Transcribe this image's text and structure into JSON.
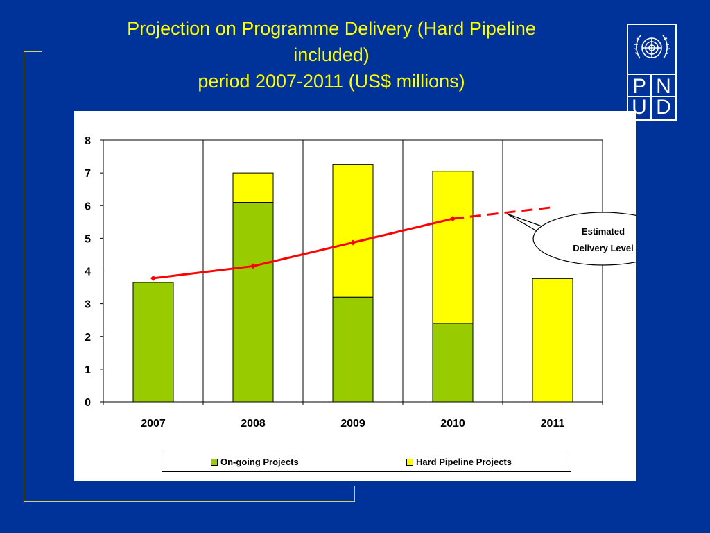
{
  "slide": {
    "title_lines": [
      "Projection on Programme Delivery (Hard Pipeline",
      "included)",
      "period 2007-2011 (US$ millions)"
    ],
    "title_color": "#ffff00",
    "background_color": "#003399"
  },
  "logo": {
    "letters": [
      "P",
      "N",
      "U",
      "D"
    ],
    "emblem": "un-emblem-icon"
  },
  "chart_data": {
    "type": "bar",
    "stacked": true,
    "categories": [
      "2007",
      "2008",
      "2009",
      "2010",
      "2011"
    ],
    "series": [
      {
        "name": "On-going Projects",
        "color": "#99cc00",
        "values": [
          3.65,
          6.1,
          3.2,
          2.4,
          0
        ]
      },
      {
        "name": "Hard Pipeline Projects",
        "color": "#ffff00",
        "values": [
          0,
          0.9,
          4.05,
          4.65,
          3.77
        ]
      }
    ],
    "line": {
      "label": "Estimated Delivery Level",
      "color": "#ff0000",
      "values": [
        3.78,
        4.15,
        4.87,
        5.6,
        5.95
      ],
      "dashed_from_index": 3
    },
    "ylim": [
      0,
      8
    ],
    "yticks": [
      "0",
      "1",
      "2",
      "3",
      "4",
      "5",
      "6",
      "7",
      "8"
    ],
    "grid": "vertical category gridlines",
    "legend_position": "bottom",
    "callout": {
      "lines": [
        "Estimated",
        "Delivery Level"
      ]
    }
  }
}
